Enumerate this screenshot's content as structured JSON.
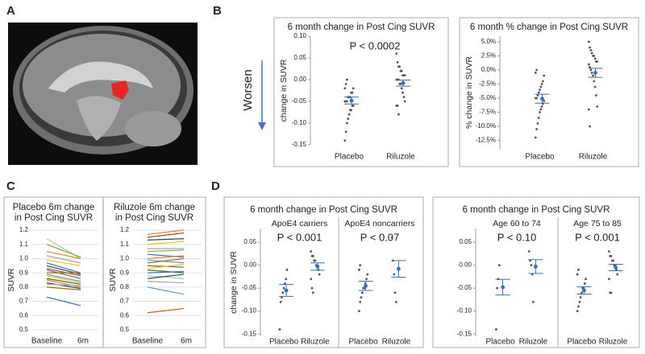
{
  "panel_labels": [
    "A",
    "B",
    "C",
    "D"
  ],
  "arrow_label": "Worsen",
  "chart_data": [
    {
      "type": "strip",
      "title": "6 month change in Post Cing SUVR",
      "ylabel": "change in SUVR",
      "categories": [
        "Placebo",
        "Riluzole"
      ],
      "ylim": [
        -0.15,
        0.1
      ],
      "yticks": [
        {
          "value": 0.1,
          "label": "0.10"
        },
        0.05,
        {
          "value": 0,
          "label": "0.00"
        },
        -0.05,
        {
          "value": -0.1,
          "label": "-0.10"
        },
        -0.15
      ],
      "point_color": "#555555",
      "mean_color": "#3b6fb5",
      "groups": [
        {
          "annotation": "P <  0.0002",
          "values": [
            [
              -0.14,
              -0.12,
              -0.1,
              -0.09,
              -0.08,
              -0.07,
              -0.07,
              -0.06,
              -0.06,
              -0.05,
              -0.05,
              -0.05,
              -0.04,
              -0.04,
              -0.04,
              -0.03,
              -0.03,
              -0.02,
              -0.02,
              -0.01,
              0
            ],
            [
              0.06,
              0.04,
              0.03,
              0.03,
              0.02,
              0.02,
              0.01,
              0.01,
              0.01,
              0,
              0,
              0,
              -0.01,
              -0.01,
              -0.02,
              -0.03,
              -0.04,
              -0.05,
              -0.06,
              -0.06,
              -0.08
            ]
          ],
          "means": [
            -0.048,
            -0.008
          ],
          "errors": [
            0.008,
            0.007
          ]
        }
      ]
    },
    {
      "type": "strip",
      "title": "6 month % change in Post Cing SUVR",
      "ylabel": "% change in SUVR",
      "categories": [
        "Placebo",
        "Riluzole"
      ],
      "ylim": [
        -14,
        6
      ],
      "yticks": [
        {
          "value": 5,
          "label": "5.0%"
        },
        {
          "value": 2.5,
          "label": "2.5%"
        },
        {
          "value": 0,
          "label": "0.0%"
        },
        {
          "value": -2.5,
          "label": "-2.5%"
        },
        {
          "value": -5,
          "label": "-5.0%"
        },
        {
          "value": -7.5,
          "label": "-7.5%"
        },
        {
          "value": -10,
          "label": "-10.0%"
        },
        {
          "value": -12.5,
          "label": "-12.5%"
        }
      ],
      "point_color": "#555555",
      "mean_color": "#3b6fb5",
      "groups": [
        {
          "values": [
            [
              -12,
              -10.5,
              -9.5,
              -8.5,
              -7.5,
              -7,
              -6.5,
              -6,
              -5.5,
              -5,
              -5,
              -4.5,
              -4,
              -3.5,
              -3,
              -2.5,
              -2,
              -1,
              -0.5,
              0
            ],
            [
              5,
              4,
              3.5,
              3,
              2.5,
              2.5,
              2,
              1.5,
              1.5,
              1,
              0.5,
              0,
              -0.5,
              -1,
              -2,
              -3,
              -4.5,
              -6.5,
              -7,
              -10
            ]
          ],
          "means": [
            -5.1,
            -0.5
          ],
          "errors": [
            0.8,
            0.8
          ]
        }
      ]
    },
    {
      "type": "line",
      "title": [
        "Placebo 6m change",
        "in Post Cing SUVR"
      ],
      "ylabel": "SUVR",
      "categories": [
        "Baseline",
        "6m"
      ],
      "ylim": [
        0.5,
        1.2
      ],
      "yticks": [
        0.5,
        0.6,
        0.7,
        0.8,
        0.9,
        {
          "value": 1,
          "label": "1.0"
        },
        1.1,
        1.2
      ],
      "grid": true,
      "series": [
        {
          "color": "#a9d18e",
          "values": [
            1.14,
            1.0
          ]
        },
        {
          "color": "#70ad47",
          "values": [
            1.1,
            1.01
          ]
        },
        {
          "color": "#ed7d31",
          "values": [
            1.05,
            1.0
          ]
        },
        {
          "color": "#a5a5a5",
          "values": [
            1.02,
            0.97
          ]
        },
        {
          "color": "#ffc000",
          "values": [
            0.99,
            0.95
          ]
        },
        {
          "color": "#4472c4",
          "values": [
            0.97,
            0.9
          ]
        },
        {
          "color": "#264478",
          "values": [
            0.95,
            0.89
          ]
        },
        {
          "color": "#9e480e",
          "values": [
            0.93,
            0.88
          ]
        },
        {
          "color": "#636363",
          "values": [
            0.92,
            0.86
          ]
        },
        {
          "color": "#997300",
          "values": [
            0.9,
            0.9
          ]
        },
        {
          "color": "#5b9bd5",
          "values": [
            0.89,
            0.84
          ]
        },
        {
          "color": "#ffc000",
          "values": [
            0.88,
            0.83
          ]
        },
        {
          "color": "#43682b",
          "values": [
            0.86,
            0.82
          ]
        },
        {
          "color": "#ed7d31",
          "values": [
            0.85,
            0.8
          ]
        },
        {
          "color": "#264478",
          "values": [
            0.83,
            0.79
          ]
        },
        {
          "color": "#a5a5a5",
          "values": [
            0.82,
            0.81
          ]
        },
        {
          "color": "#997300",
          "values": [
            0.8,
            0.78
          ]
        },
        {
          "color": "#4472c4",
          "values": [
            0.73,
            0.67
          ]
        }
      ]
    },
    {
      "type": "line",
      "title": [
        "Riluzole 6m change",
        "in Post Cing SUVR"
      ],
      "ylabel": "SUVR",
      "categories": [
        "Baseline",
        "6m"
      ],
      "ylim": [
        0.5,
        1.2
      ],
      "yticks": [
        0.5,
        0.6,
        0.7,
        0.8,
        0.9,
        {
          "value": 1,
          "label": "1.0"
        },
        1.1,
        1.2
      ],
      "grid": true,
      "series": [
        {
          "color": "#ed7d31",
          "values": [
            1.17,
            1.2
          ]
        },
        {
          "color": "#9e480e",
          "values": [
            1.15,
            1.18
          ]
        },
        {
          "color": "#264478",
          "values": [
            1.13,
            1.14
          ]
        },
        {
          "color": "#ffc000",
          "values": [
            1.1,
            1.12
          ]
        },
        {
          "color": "#a5a5a5",
          "values": [
            1.07,
            1.07
          ]
        },
        {
          "color": "#70ad47",
          "values": [
            1.05,
            1.06
          ]
        },
        {
          "color": "#4472c4",
          "values": [
            1.03,
            1.01
          ]
        },
        {
          "color": "#ed7d31",
          "values": [
            1.0,
            1.02
          ]
        },
        {
          "color": "#5b9bd5",
          "values": [
            0.99,
            0.97
          ]
        },
        {
          "color": "#997300",
          "values": [
            0.97,
            1.0
          ]
        },
        {
          "color": "#636363",
          "values": [
            0.95,
            0.94
          ]
        },
        {
          "color": "#ffc000",
          "values": [
            0.93,
            0.96
          ]
        },
        {
          "color": "#43682b",
          "values": [
            0.92,
            0.9
          ]
        },
        {
          "color": "#4472c4",
          "values": [
            0.9,
            0.91
          ]
        },
        {
          "color": "#a9d18e",
          "values": [
            0.88,
            0.86
          ]
        },
        {
          "color": "#264478",
          "values": [
            0.86,
            0.89
          ]
        },
        {
          "color": "#a5a5a5",
          "values": [
            0.84,
            0.83
          ]
        },
        {
          "color": "#5b9bd5",
          "values": [
            0.8,
            0.75
          ]
        },
        {
          "color": "#c55a11",
          "values": [
            0.62,
            0.65
          ]
        }
      ]
    },
    {
      "type": "strip",
      "title": "6 month change in Post Cing SUVR",
      "ylabel": "change in SUVR",
      "categories": [
        "Placebo",
        "Riluzole"
      ],
      "ylim": [
        -0.155,
        0.08
      ],
      "yticks": [
        0.05,
        {
          "value": 0,
          "label": "0.00"
        },
        -0.05,
        {
          "value": -0.1,
          "label": "-0.10"
        },
        -0.15
      ],
      "point_color": "#555555",
      "mean_color": "#3b6fb5",
      "groups": [
        {
          "subtitle": "ApoE4 carriers",
          "annotation": "P <  0.001",
          "values": [
            [
              -0.14,
              -0.08,
              -0.07,
              -0.06,
              -0.05,
              -0.04,
              -0.03,
              -0.01
            ],
            [
              0.03,
              0.02,
              0.02,
              0.01,
              0.01,
              0,
              0,
              -0.01,
              -0.02,
              -0.03,
              -0.05,
              -0.06
            ]
          ],
          "means": [
            -0.055,
            -0.003
          ],
          "errors": [
            0.013,
            0.008
          ]
        },
        {
          "subtitle": "ApoE4 noncarriers",
          "annotation": "P <  0.07",
          "values": [
            [
              -0.1,
              -0.08,
              -0.07,
              -0.06,
              -0.05,
              -0.05,
              -0.04,
              -0.03,
              -0.02,
              -0.01,
              0
            ],
            [
              0.06,
              0.01,
              -0.02,
              -0.06,
              -0.08
            ]
          ],
          "means": [
            -0.045,
            -0.008
          ],
          "errors": [
            0.01,
            0.018
          ]
        }
      ]
    },
    {
      "type": "strip",
      "title": "6 month change in Post Cing SUVR",
      "categories": [
        "Placebo",
        "Riluzole"
      ],
      "ylim": [
        -0.155,
        0.08
      ],
      "yticks": [
        0.05,
        {
          "value": 0,
          "label": "0.00"
        },
        -0.05,
        {
          "value": -0.1,
          "label": "-0.10"
        },
        -0.15
      ],
      "point_color": "#555555",
      "mean_color": "#3b6fb5",
      "groups": [
        {
          "subtitle": "Age 60 to 74",
          "annotation": "P <  0.10",
          "values": [
            [
              -0.14,
              -0.05,
              -0.03,
              0
            ],
            [
              0.03,
              0.01,
              0,
              -0.02,
              -0.08
            ]
          ],
          "means": [
            -0.048,
            -0.003
          ],
          "errors": [
            0.017,
            0.015
          ]
        },
        {
          "subtitle": "Age 75 to 85",
          "annotation": "P <  0.001",
          "values": [
            [
              -0.1,
              -0.09,
              -0.08,
              -0.07,
              -0.06,
              -0.05,
              -0.05,
              -0.04,
              -0.03,
              -0.02,
              -0.01
            ],
            [
              0.03,
              0.02,
              0.02,
              0.01,
              0.01,
              0,
              0,
              -0.01,
              -0.02,
              -0.03,
              -0.06,
              -0.06
            ]
          ],
          "means": [
            -0.055,
            -0.005
          ],
          "errors": [
            0.008,
            0.007
          ]
        }
      ]
    }
  ]
}
